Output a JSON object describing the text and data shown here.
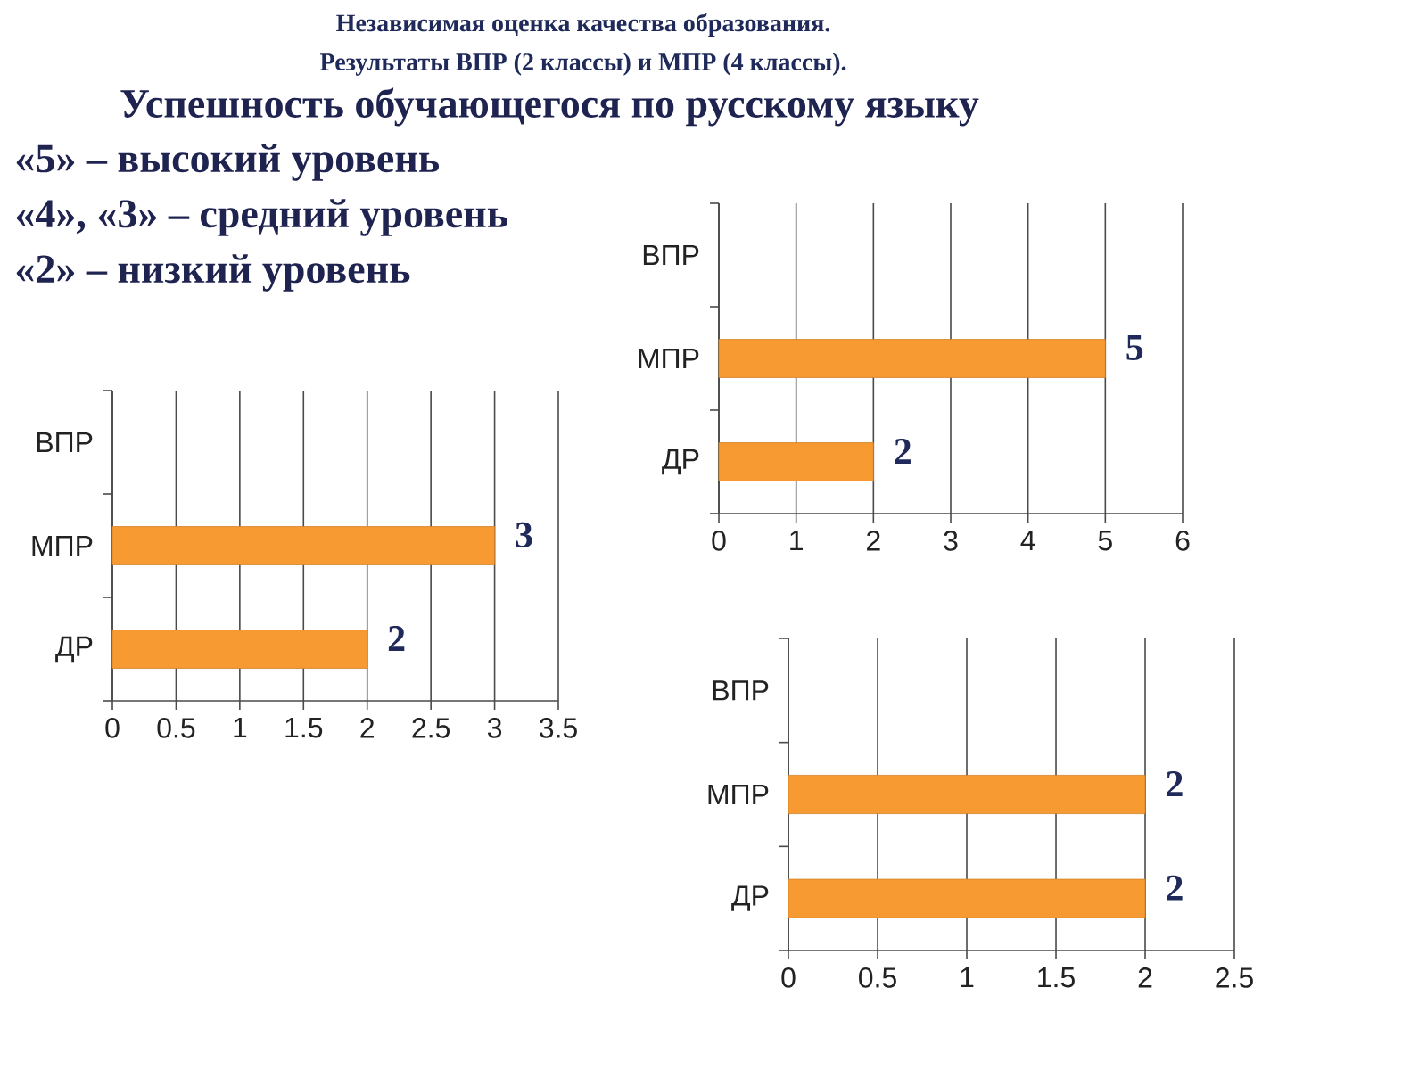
{
  "chart_data": [
    {
      "type": "other",
      "title": "Независимая оценка качества образования.",
      "subtitle": "Результаты ВПР (2 классы) и МПР (4 классы).",
      "annotations": [
        "Успешность обучающегося по русскому языку",
        "«5» – высокий уровень",
        "«4», «3» – средний уровень",
        "«2» – низкий уровень"
      ]
    },
    {
      "type": "bar",
      "orientation": "horizontal",
      "categories": [
        "ВПР",
        "МПР",
        "ДР"
      ],
      "values": [
        null,
        5,
        2
      ],
      "color": "#f79a32",
      "xlim": [
        0,
        6
      ],
      "xticks": [
        0,
        1,
        2,
        3,
        4,
        5,
        6
      ],
      "grid": "x",
      "data_labels": true
    },
    {
      "type": "bar",
      "orientation": "horizontal",
      "categories": [
        "ВПР",
        "МПР",
        "ДР"
      ],
      "values": [
        null,
        3,
        2
      ],
      "color": "#f79a32",
      "xlim": [
        0,
        3.5
      ],
      "xticks": [
        0,
        0.5,
        1,
        1.5,
        2,
        2.5,
        3,
        3.5
      ],
      "grid": "x",
      "data_labels": true
    },
    {
      "type": "bar",
      "orientation": "horizontal",
      "categories": [
        "ВПР",
        "МПР",
        "ДР"
      ],
      "values": [
        null,
        2,
        2
      ],
      "color": "#f79a32",
      "xlim": [
        0,
        2.5
      ],
      "xticks": [
        0,
        0.5,
        1,
        1.5,
        2,
        2.5
      ],
      "grid": "x",
      "data_labels": true
    }
  ]
}
